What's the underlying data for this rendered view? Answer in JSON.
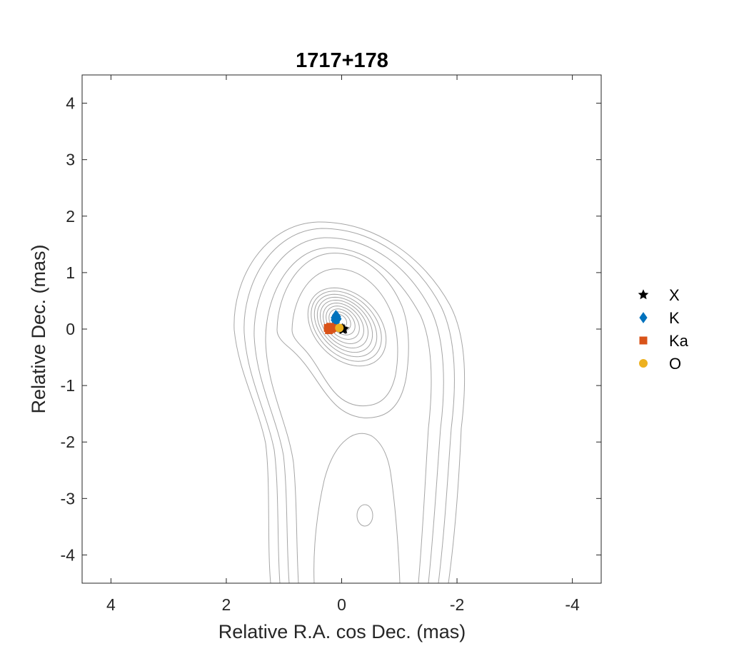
{
  "chart_data": {
    "type": "scatter",
    "title": "1717+178",
    "xlabel": "Relative R.A. cos Dec. (mas)",
    "ylabel": "Relative Dec. (mas)",
    "xlim": [
      4.5,
      -4.5
    ],
    "ylim": [
      -4.5,
      4.5
    ],
    "x_reversed": true,
    "xticks": [
      4,
      2,
      0,
      -2,
      -4
    ],
    "yticks": [
      4,
      3,
      2,
      1,
      0,
      -1,
      -2,
      -3,
      -4
    ],
    "xtick_labels": [
      "4",
      "2",
      "0",
      "-2",
      "-4"
    ],
    "ytick_labels": [
      "4",
      "3",
      "2",
      "1",
      "0",
      "-1",
      "-2",
      "-3",
      "-4"
    ],
    "grid": false,
    "background_contours": true,
    "contour_color": "#a6a6a6",
    "legend_position": "right-outside",
    "series": [
      {
        "name": "X",
        "marker": "star",
        "color": "#000000",
        "points": [
          {
            "x": -0.02,
            "y": -0.01
          },
          {
            "x": -0.04,
            "y": 0.0
          },
          {
            "x": -0.01,
            "y": 0.01
          }
        ]
      },
      {
        "name": "K",
        "marker": "diamond",
        "color": "#0072bd",
        "points": [
          {
            "x": 0.12,
            "y": 0.2
          },
          {
            "x": 0.1,
            "y": 0.24
          },
          {
            "x": 0.08,
            "y": 0.22
          },
          {
            "x": 0.12,
            "y": 0.16
          },
          {
            "x": 0.07,
            "y": 0.18
          },
          {
            "x": 0.1,
            "y": 0.12
          }
        ]
      },
      {
        "name": "Ka",
        "marker": "square",
        "color": "#d95319",
        "points": [
          {
            "x": 0.22,
            "y": -0.02
          },
          {
            "x": 0.18,
            "y": 0.0
          },
          {
            "x": 0.2,
            "y": 0.04
          },
          {
            "x": 0.16,
            "y": 0.02
          },
          {
            "x": 0.24,
            "y": 0.02
          }
        ]
      },
      {
        "name": "O",
        "marker": "circle",
        "color": "#edb120",
        "points": [
          {
            "x": 0.04,
            "y": 0.02
          }
        ]
      }
    ]
  }
}
